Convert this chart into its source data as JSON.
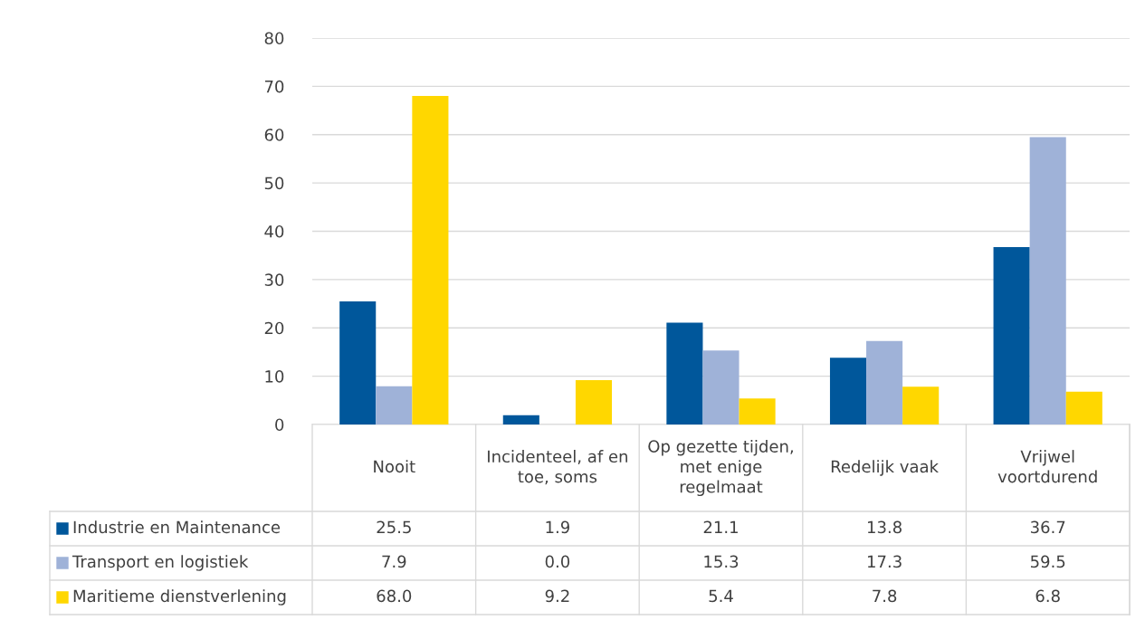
{
  "chart_data": {
    "type": "bar",
    "categories": [
      "Nooit",
      "Incidenteel, af en toe, soms",
      "Op gezette tijden, met enige regelmaat",
      "Redelijk vaak",
      "Vrijwel voortdurend"
    ],
    "series": [
      {
        "name": "Industrie en Maintenance",
        "color": "#00579b",
        "values": [
          25.5,
          1.9,
          21.1,
          13.8,
          36.7
        ],
        "value_labels": [
          "25.5",
          "1.9",
          "21.1",
          "13.8",
          "36.7"
        ]
      },
      {
        "name": "Transport en logistiek",
        "color": "#9fb2d8",
        "values": [
          7.9,
          0.0,
          15.3,
          17.3,
          59.5
        ],
        "value_labels": [
          "7.9",
          "0.0",
          "15.3",
          "17.3",
          "59.5"
        ]
      },
      {
        "name": "Maritieme dienstverlening",
        "color": "#ffd700",
        "values": [
          68.0,
          9.2,
          5.4,
          7.8,
          6.8
        ],
        "value_labels": [
          "68.0",
          "9.2",
          "5.4",
          "7.8",
          "6.8"
        ]
      }
    ],
    "ylim": [
      0,
      80
    ],
    "yticks": [
      0,
      10,
      20,
      30,
      40,
      50,
      60,
      70,
      80
    ],
    "grid": "y",
    "legend": "bottom"
  }
}
